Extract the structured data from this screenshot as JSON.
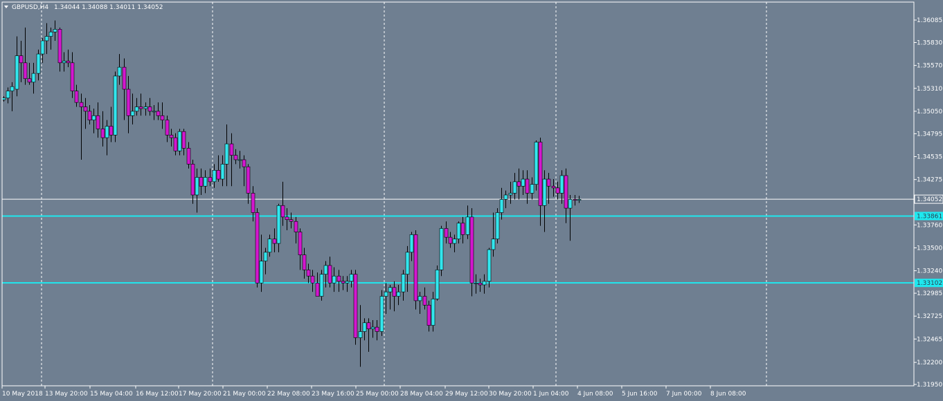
{
  "window": {
    "symbol_label": "GBPUSD,H4",
    "ohlc_label": "1.34044 1.34088 1.34011 1.34052"
  },
  "colors": {
    "background": "#6f7f91",
    "bull_body": "#33e6ee",
    "bear_body": "#d317cf",
    "wick": "#000000",
    "grid": "#ffffff",
    "axis_text": "#ffffff",
    "hline": "#1ee8ef",
    "price_line": "#ffffff"
  },
  "chart_data": {
    "type": "candlestick",
    "symbol": "GBPUSD",
    "timeframe": "H4",
    "grid": "vertical-dashed",
    "price_axis_labels": [
      "1.36085",
      "1.35830",
      "1.35570",
      "1.35310",
      "1.35050",
      "1.34795",
      "1.34535",
      "1.34275",
      "1.33760",
      "1.33500",
      "1.33240",
      "1.32985",
      "1.32725",
      "1.32465",
      "1.32200",
      "1.31950"
    ],
    "time_axis_labels": [
      "10 May 2018",
      "13 May 20:00",
      "15 May 04:00",
      "16 May 12:00",
      "17 May 20:00",
      "21 May 00:00",
      "22 May 08:00",
      "23 May 16:00",
      "25 May 00:00",
      "28 May 04:00",
      "29 May 12:00",
      "30 May 20:00",
      "1 Jun 04:00",
      "4 Jun 08:00",
      "5 Jun 16:00",
      "7 Jun 00:00",
      "8 Jun 08:00"
    ],
    "current_price": "1.34052",
    "horizontal_levels": [
      "1.33861",
      "1.33102"
    ],
    "candles": [
      [
        1.3518,
        1.3522,
        1.3516,
        1.352
      ],
      [
        1.352,
        1.3532,
        1.3514,
        1.3528
      ],
      [
        1.3528,
        1.3538,
        1.3505,
        1.3533
      ],
      [
        1.353,
        1.359,
        1.3522,
        1.3568
      ],
      [
        1.3568,
        1.3585,
        1.3538,
        1.356
      ],
      [
        1.356,
        1.36,
        1.3535,
        1.3542
      ],
      [
        1.3542,
        1.356,
        1.3535,
        1.3538
      ],
      [
        1.3538,
        1.356,
        1.3525,
        1.3548
      ],
      [
        1.3548,
        1.3575,
        1.354,
        1.357
      ],
      [
        1.357,
        1.3588,
        1.356,
        1.3585
      ],
      [
        1.3585,
        1.3605,
        1.357,
        1.359
      ],
      [
        1.359,
        1.36,
        1.3575,
        1.3595
      ],
      [
        1.3595,
        1.3608,
        1.3585,
        1.3598
      ],
      [
        1.3598,
        1.36,
        1.355,
        1.356
      ],
      [
        1.356,
        1.3572,
        1.355,
        1.3562
      ],
      [
        1.3562,
        1.3575,
        1.3555,
        1.356
      ],
      [
        1.356,
        1.3572,
        1.352,
        1.3528
      ],
      [
        1.3528,
        1.3535,
        1.351,
        1.3515
      ],
      [
        1.3515,
        1.3525,
        1.345,
        1.351
      ],
      [
        1.351,
        1.352,
        1.3485,
        1.3505
      ],
      [
        1.3505,
        1.3512,
        1.349,
        1.3495
      ],
      [
        1.3495,
        1.3508,
        1.348,
        1.35
      ],
      [
        1.35,
        1.3515,
        1.3475,
        1.3485
      ],
      [
        1.3485,
        1.3505,
        1.3465,
        1.3475
      ],
      [
        1.3475,
        1.3495,
        1.3455,
        1.3488
      ],
      [
        1.3488,
        1.351,
        1.347,
        1.3478
      ],
      [
        1.3478,
        1.355,
        1.347,
        1.3545
      ],
      [
        1.3545,
        1.357,
        1.3535,
        1.3555
      ],
      [
        1.3555,
        1.3565,
        1.3495,
        1.353
      ],
      [
        1.353,
        1.3545,
        1.348,
        1.35
      ],
      [
        1.35,
        1.3525,
        1.349,
        1.3505
      ],
      [
        1.3505,
        1.352,
        1.35,
        1.351
      ],
      [
        1.351,
        1.3525,
        1.35,
        1.3508
      ],
      [
        1.3508,
        1.3515,
        1.35,
        1.351
      ],
      [
        1.351,
        1.352,
        1.35,
        1.3505
      ],
      [
        1.3505,
        1.3512,
        1.3495,
        1.3505
      ],
      [
        1.3505,
        1.3515,
        1.3495,
        1.35
      ],
      [
        1.35,
        1.3515,
        1.3485,
        1.3495
      ],
      [
        1.3495,
        1.35,
        1.347,
        1.3478
      ],
      [
        1.3478,
        1.3485,
        1.3465,
        1.3475
      ],
      [
        1.3475,
        1.348,
        1.3455,
        1.346
      ],
      [
        1.346,
        1.3485,
        1.3455,
        1.3482
      ],
      [
        1.3482,
        1.3485,
        1.3455,
        1.3463
      ],
      [
        1.3463,
        1.347,
        1.344,
        1.3445
      ],
      [
        1.3445,
        1.345,
        1.34,
        1.341
      ],
      [
        1.341,
        1.344,
        1.339,
        1.343
      ],
      [
        1.343,
        1.344,
        1.341,
        1.342
      ],
      [
        1.342,
        1.3438,
        1.3412,
        1.343
      ],
      [
        1.343,
        1.344,
        1.342,
        1.3425
      ],
      [
        1.3425,
        1.3445,
        1.3418,
        1.3438
      ],
      [
        1.3438,
        1.3455,
        1.3425,
        1.3428
      ],
      [
        1.3428,
        1.3455,
        1.342,
        1.3445
      ],
      [
        1.3445,
        1.349,
        1.342,
        1.3468
      ],
      [
        1.3468,
        1.348,
        1.342,
        1.3455
      ],
      [
        1.3455,
        1.3462,
        1.3445,
        1.345
      ],
      [
        1.345,
        1.346,
        1.344,
        1.345
      ],
      [
        1.345,
        1.3455,
        1.342,
        1.3442
      ],
      [
        1.3442,
        1.3445,
        1.34,
        1.3412
      ],
      [
        1.3412,
        1.342,
        1.338,
        1.339
      ],
      [
        1.339,
        1.3395,
        1.3305,
        1.331
      ],
      [
        1.331,
        1.3365,
        1.33,
        1.3335
      ],
      [
        1.3335,
        1.335,
        1.332,
        1.3345
      ],
      [
        1.3345,
        1.3365,
        1.334,
        1.336
      ],
      [
        1.336,
        1.3372,
        1.3345,
        1.3355
      ],
      [
        1.3355,
        1.34,
        1.3345,
        1.3398
      ],
      [
        1.3398,
        1.3425,
        1.3375,
        1.3385
      ],
      [
        1.3385,
        1.3395,
        1.337,
        1.3382
      ],
      [
        1.3382,
        1.339,
        1.3372,
        1.338
      ],
      [
        1.338,
        1.3385,
        1.3355,
        1.3368
      ],
      [
        1.3368,
        1.3372,
        1.3325,
        1.3342
      ],
      [
        1.3342,
        1.335,
        1.3315,
        1.3325
      ],
      [
        1.3325,
        1.3332,
        1.331,
        1.3318
      ],
      [
        1.3318,
        1.3325,
        1.33,
        1.331
      ],
      [
        1.331,
        1.3322,
        1.3295,
        1.3295
      ],
      [
        1.3295,
        1.3325,
        1.329,
        1.332
      ],
      [
        1.332,
        1.3335,
        1.3305,
        1.333
      ],
      [
        1.333,
        1.334,
        1.3305,
        1.331
      ],
      [
        1.331,
        1.3328,
        1.33,
        1.3318
      ],
      [
        1.3318,
        1.3325,
        1.33,
        1.3312
      ],
      [
        1.3312,
        1.3318,
        1.3302,
        1.331
      ],
      [
        1.331,
        1.3318,
        1.33,
        1.3312
      ],
      [
        1.3312,
        1.3325,
        1.3305,
        1.332
      ],
      [
        1.332,
        1.3325,
        1.324,
        1.3248
      ],
      [
        1.3248,
        1.3285,
        1.3215,
        1.3255
      ],
      [
        1.3255,
        1.327,
        1.3245,
        1.3265
      ],
      [
        1.3265,
        1.327,
        1.3232,
        1.3258
      ],
      [
        1.3258,
        1.3268,
        1.3248,
        1.326
      ],
      [
        1.326,
        1.3268,
        1.3245,
        1.3255
      ],
      [
        1.3255,
        1.3302,
        1.325,
        1.3295
      ],
      [
        1.3295,
        1.331,
        1.3275,
        1.33
      ],
      [
        1.33,
        1.3308,
        1.328,
        1.3305
      ],
      [
        1.3305,
        1.3312,
        1.3278,
        1.3295
      ],
      [
        1.3295,
        1.3308,
        1.3285,
        1.33
      ],
      [
        1.33,
        1.3325,
        1.329,
        1.332
      ],
      [
        1.332,
        1.3352,
        1.33,
        1.3345
      ],
      [
        1.3345,
        1.3368,
        1.3335,
        1.3365
      ],
      [
        1.3365,
        1.337,
        1.328,
        1.329
      ],
      [
        1.329,
        1.33,
        1.3275,
        1.3295
      ],
      [
        1.3295,
        1.3305,
        1.328,
        1.3285
      ],
      [
        1.3285,
        1.329,
        1.3255,
        1.3262
      ],
      [
        1.3262,
        1.33,
        1.3255,
        1.3292
      ],
      [
        1.3292,
        1.333,
        1.329,
        1.3325
      ],
      [
        1.3325,
        1.3375,
        1.3318,
        1.3372
      ],
      [
        1.3372,
        1.338,
        1.3355,
        1.3362
      ],
      [
        1.3362,
        1.3368,
        1.335,
        1.3355
      ],
      [
        1.3355,
        1.3365,
        1.3345,
        1.336
      ],
      [
        1.336,
        1.338,
        1.3355,
        1.3378
      ],
      [
        1.3378,
        1.3385,
        1.3355,
        1.3365
      ],
      [
        1.3365,
        1.3398,
        1.336,
        1.3385
      ],
      [
        1.3385,
        1.3395,
        1.3295,
        1.331
      ],
      [
        1.331,
        1.332,
        1.3298,
        1.331
      ],
      [
        1.331,
        1.3315,
        1.33,
        1.3308
      ],
      [
        1.3308,
        1.332,
        1.3298,
        1.3312
      ],
      [
        1.3312,
        1.335,
        1.3305,
        1.3348
      ],
      [
        1.3348,
        1.339,
        1.334,
        1.336
      ],
      [
        1.336,
        1.3395,
        1.3355,
        1.339
      ],
      [
        1.339,
        1.3418,
        1.3382,
        1.3405
      ],
      [
        1.3405,
        1.3415,
        1.3395,
        1.341
      ],
      [
        1.341,
        1.3425,
        1.34,
        1.3412
      ],
      [
        1.3412,
        1.3435,
        1.3405,
        1.3425
      ],
      [
        1.3425,
        1.344,
        1.3405,
        1.342
      ],
      [
        1.342,
        1.3438,
        1.341,
        1.3428
      ],
      [
        1.3428,
        1.3438,
        1.34,
        1.3412
      ],
      [
        1.3412,
        1.343,
        1.3405,
        1.3422
      ],
      [
        1.3422,
        1.3472,
        1.3415,
        1.347
      ],
      [
        1.347,
        1.3475,
        1.3375,
        1.3398
      ],
      [
        1.3398,
        1.3438,
        1.3368,
        1.3428
      ],
      [
        1.3428,
        1.3435,
        1.34,
        1.342
      ],
      [
        1.342,
        1.3428,
        1.3408,
        1.3418
      ],
      [
        1.3418,
        1.3425,
        1.3405,
        1.3412
      ],
      [
        1.3412,
        1.3438,
        1.34,
        1.3432
      ],
      [
        1.3432,
        1.344,
        1.3378,
        1.3395
      ],
      [
        1.3395,
        1.341,
        1.3358,
        1.3405
      ],
      [
        1.3405,
        1.341,
        1.3398,
        1.3404
      ],
      [
        1.3404,
        1.3409,
        1.3401,
        1.3405
      ]
    ]
  }
}
